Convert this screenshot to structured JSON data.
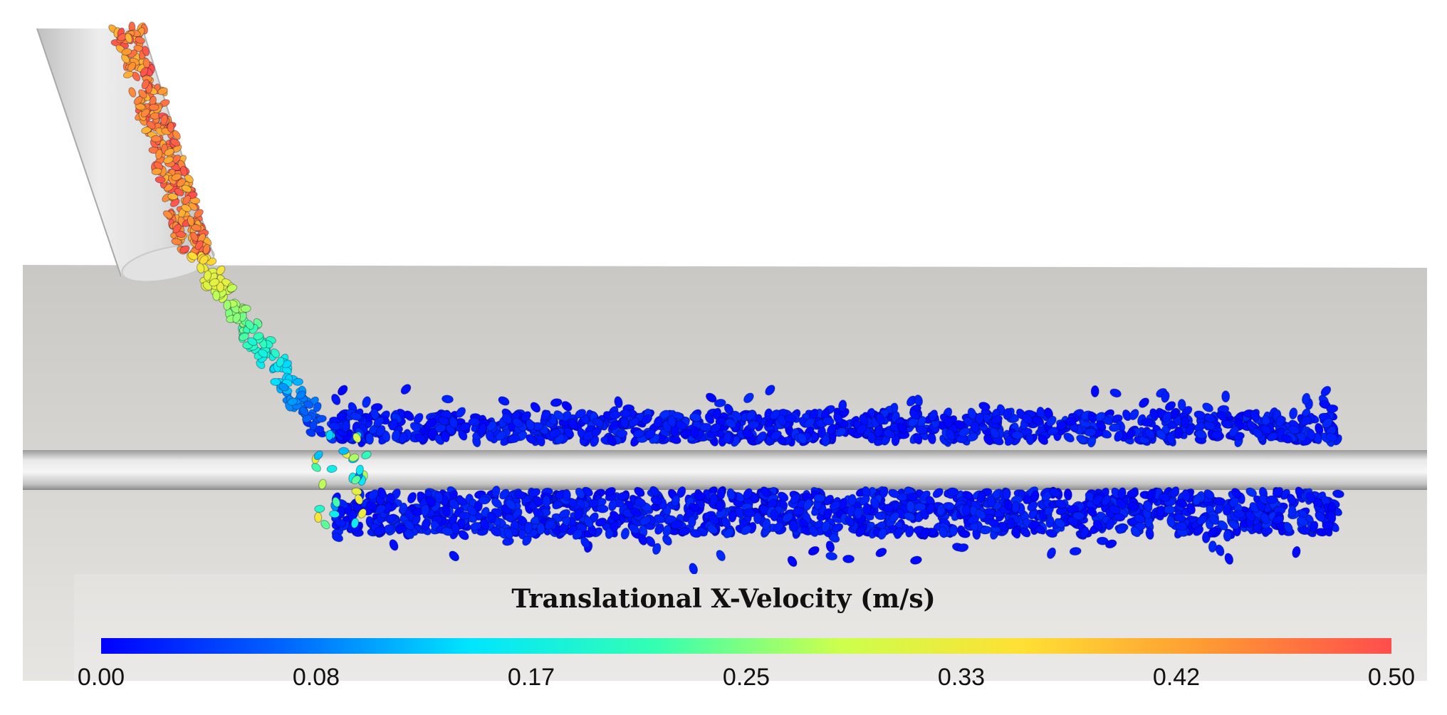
{
  "figure": {
    "description_shown": false,
    "colormap": {
      "name": "jet-like",
      "stops": [
        "#0000ff",
        "#0066ff",
        "#00e5ff",
        "#33ffb3",
        "#ccff4d",
        "#ffe033",
        "#ff9933",
        "#ff4d4d"
      ]
    },
    "colors": {
      "background": "#ffffff",
      "floor": "#d5d3cf",
      "chute": "#dcdcdc",
      "rod": "#d9d9d9"
    }
  },
  "legend": {
    "title": "Translational X-Velocity (m/s)",
    "min": 0.0,
    "max": 0.5,
    "ticks": [
      "0.00",
      "0.08",
      "0.17",
      "0.25",
      "0.33",
      "0.42",
      "0.50"
    ]
  }
}
